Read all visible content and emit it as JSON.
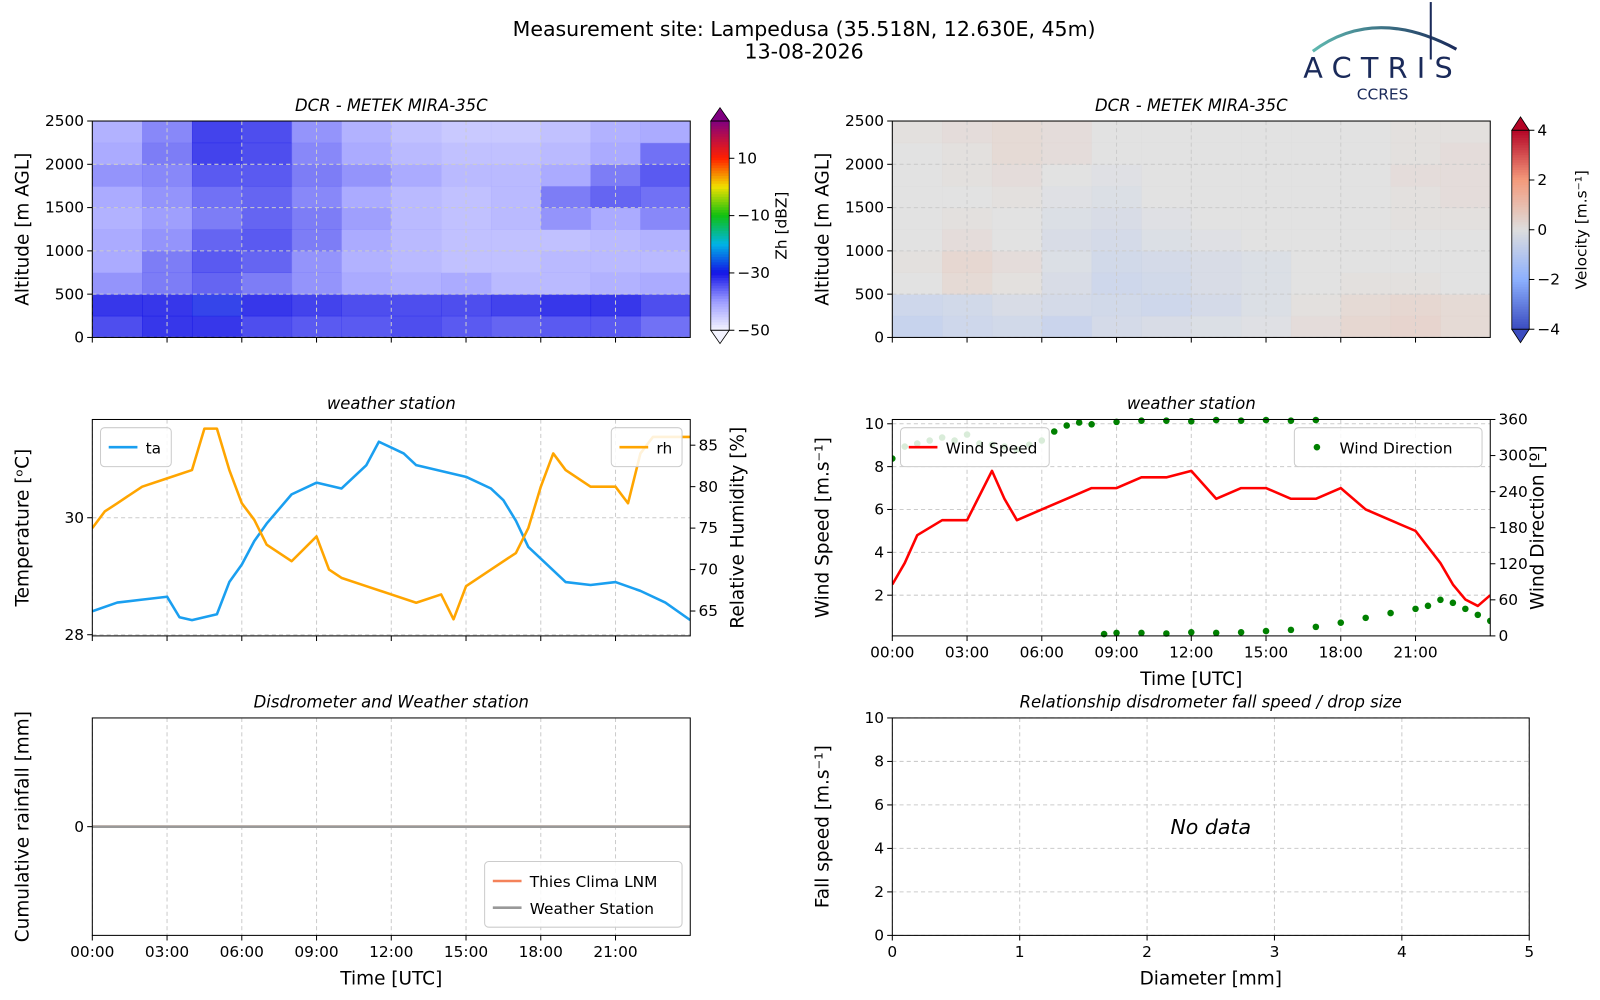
{
  "title": "Measurement site: Lampedusa (35.518N, 12.630E, 45m)",
  "subtitle": "13-08-2026",
  "logo": {
    "name": "ACTRIS",
    "sub": "CCRES"
  },
  "chart_data": [
    {
      "type": "heatmap",
      "title": "DCR - METEK MIRA-35C",
      "ylabel": "Altitude [m AGL]",
      "xlim": [
        0,
        24
      ],
      "xticks": [
        0,
        3,
        6,
        9,
        12,
        15,
        18,
        21
      ],
      "xtick_labels": false,
      "ylim": [
        0,
        2500
      ],
      "yticks": [
        0,
        500,
        1000,
        1500,
        2000,
        2500
      ],
      "grid": true,
      "x": [
        1,
        3,
        5,
        7,
        9,
        11,
        13,
        15,
        17,
        19,
        21,
        23
      ],
      "y": [
        125,
        375,
        625,
        875,
        1125,
        1375,
        1625,
        1875,
        2125,
        2375
      ],
      "z": [
        [
          -32,
          -30,
          -30,
          -32,
          -33,
          -33,
          -32,
          -33,
          -34,
          -33,
          -33,
          -35
        ],
        [
          -30,
          -30,
          -29,
          -30,
          -31,
          -32,
          -32,
          -32,
          -31,
          -30,
          -30,
          -32
        ],
        [
          -38,
          -36,
          -34,
          -36,
          -38,
          -40,
          -41,
          -40,
          -42,
          -42,
          -41,
          -40
        ],
        [
          -40,
          -36,
          -33,
          -34,
          -38,
          -41,
          -42,
          -43,
          -43,
          -42,
          -42,
          -42
        ],
        [
          -40,
          -38,
          -34,
          -33,
          -36,
          -40,
          -42,
          -43,
          -43,
          -43,
          -42,
          -41
        ],
        [
          -41,
          -39,
          -36,
          -34,
          -36,
          -39,
          -42,
          -43,
          -42,
          -38,
          -40,
          -37
        ],
        [
          -40,
          -38,
          -35,
          -34,
          -37,
          -40,
          -42,
          -43,
          -42,
          -36,
          -34,
          -35
        ],
        [
          -38,
          -37,
          -33,
          -33,
          -36,
          -38,
          -40,
          -42,
          -42,
          -40,
          -36,
          -33
        ],
        [
          -40,
          -36,
          -31,
          -32,
          -37,
          -40,
          -42,
          -43,
          -43,
          -42,
          -40,
          -35
        ],
        [
          -41,
          -37,
          -31,
          -32,
          -38,
          -41,
          -43,
          -44,
          -44,
          -43,
          -41,
          -40
        ]
      ],
      "colorbar": {
        "label": "Zh [dBZ]",
        "lim": [
          -50,
          23
        ],
        "ticks": [
          {
            "value": -50,
            "label": "−50"
          },
          {
            "value": -30,
            "label": "−30"
          },
          {
            "value": -10,
            "label": "−10"
          },
          10
        ],
        "colormap": [
          {
            "value": -50,
            "color": "#f4f4ff"
          },
          {
            "value": -40,
            "color": "#9c9cff"
          },
          {
            "value": -30,
            "color": "#1414e6"
          },
          {
            "value": -20,
            "color": "#00b4e6"
          },
          {
            "value": -10,
            "color": "#10c010"
          },
          {
            "value": 0,
            "color": "#f0e000"
          },
          {
            "value": 10,
            "color": "#ff2000"
          },
          {
            "value": 23,
            "color": "#800080"
          }
        ]
      }
    },
    {
      "type": "heatmap",
      "title": "DCR - METEK MIRA-35C",
      "ylabel": "Altitude [m AGL]",
      "xlim": [
        0,
        24
      ],
      "xticks": [
        0,
        3,
        6,
        9,
        12,
        15,
        18,
        21
      ],
      "xtick_labels": false,
      "ylim": [
        0,
        2500
      ],
      "yticks": [
        0,
        500,
        1000,
        1500,
        2000,
        2500
      ],
      "grid": true,
      "x": [
        1,
        3,
        5,
        7,
        9,
        11,
        13,
        15,
        17,
        19,
        21,
        23
      ],
      "y": [
        125,
        375,
        625,
        875,
        1125,
        1375,
        1625,
        1875,
        2125,
        2375
      ],
      "z": [
        [
          -0.8,
          -0.6,
          -0.5,
          -0.7,
          -0.4,
          -0.3,
          -0.2,
          -0.1,
          0.2,
          0.4,
          0.5,
          0.3
        ],
        [
          -0.6,
          -0.5,
          -0.3,
          -0.4,
          -0.5,
          -0.6,
          -0.4,
          -0.2,
          0.1,
          0.3,
          0.4,
          0.3
        ],
        [
          0,
          0.3,
          0.1,
          -0.3,
          -0.6,
          -0.5,
          -0.3,
          -0.2,
          0,
          0.1,
          0.1,
          0
        ],
        [
          0.1,
          0.4,
          0.2,
          -0.2,
          -0.5,
          -0.4,
          -0.3,
          -0.2,
          0,
          0,
          0,
          0
        ],
        [
          0,
          0.2,
          0,
          -0.3,
          -0.4,
          -0.2,
          -0.1,
          0,
          0,
          0,
          0,
          0
        ],
        [
          0,
          0.1,
          0,
          -0.2,
          -0.3,
          -0.1,
          0,
          0,
          0,
          0,
          0.1,
          0.1
        ],
        [
          0,
          0,
          0.1,
          -0.1,
          -0.2,
          0,
          0,
          0,
          0,
          0,
          0.1,
          0.2
        ],
        [
          0,
          0.1,
          0.2,
          0,
          -0.1,
          0,
          0,
          0,
          0,
          0,
          0.2,
          0.2
        ],
        [
          0,
          0.1,
          0.3,
          0.2,
          0,
          0,
          0,
          0,
          0,
          0,
          0.1,
          0.2
        ],
        [
          0.1,
          0.2,
          0.3,
          0.2,
          0,
          0,
          0,
          0,
          0,
          0,
          0.1,
          0.1
        ]
      ],
      "colorbar": {
        "label": "Velocity [m.s⁻¹]",
        "lim": [
          -4,
          4
        ],
        "ticks": [
          {
            "value": -4,
            "label": "−4"
          },
          {
            "value": -2,
            "label": "−2"
          },
          0,
          2,
          4
        ],
        "colormap": [
          {
            "value": -4,
            "color": "#3b4cc0"
          },
          {
            "value": -2,
            "color": "#8db0fe"
          },
          {
            "value": 0,
            "color": "#dddddd"
          },
          {
            "value": 2,
            "color": "#f49a7b"
          },
          {
            "value": 4,
            "color": "#b40426"
          }
        ]
      }
    },
    {
      "type": "line",
      "title": "weather station",
      "ylabel": "Temperature [ᵒC]",
      "y2label": "Relative Humidity [%]",
      "xlim": [
        0,
        24
      ],
      "xticks": [
        0,
        3,
        6,
        9,
        12,
        15,
        18,
        21
      ],
      "xtick_labels": false,
      "ylim": [
        27.98,
        31.68
      ],
      "yticks": [
        28,
        30
      ],
      "y2lim": [
        62,
        88.1
      ],
      "y2ticks": [
        65,
        70,
        75,
        80,
        85
      ],
      "grid": true,
      "series": [
        {
          "name": "ta",
          "color": "#1a9ff0",
          "legend": "upper left",
          "x": [
            0,
            1,
            2,
            3,
            3.5,
            4,
            5,
            5.5,
            6,
            6.5,
            7,
            8,
            9,
            10,
            11,
            11.5,
            12,
            12.5,
            13,
            14,
            15,
            16,
            16.5,
            17,
            17.5,
            18,
            19,
            20,
            21,
            22,
            23,
            24
          ],
          "values": [
            28.4,
            28.55,
            28.6,
            28.65,
            28.3,
            28.25,
            28.35,
            28.9,
            29.2,
            29.6,
            29.9,
            30.4,
            30.6,
            30.5,
            30.9,
            31.3,
            31.2,
            31.1,
            30.9,
            30.8,
            30.7,
            30.5,
            30.3,
            29.95,
            29.5,
            29.3,
            28.9,
            28.85,
            28.9,
            28.75,
            28.55,
            28.25
          ]
        },
        {
          "name": "rh",
          "color": "#ffa500",
          "axis": "y2",
          "legend": "upper right",
          "x": [
            0,
            0.5,
            1,
            2,
            3,
            4,
            4.5,
            5,
            5.5,
            6,
            6.5,
            7,
            8,
            9,
            9.5,
            10,
            11,
            12,
            13,
            14,
            14.5,
            15,
            16,
            17,
            17.5,
            18,
            18.5,
            19,
            20,
            21,
            21.5,
            22,
            22.5,
            23,
            24
          ],
          "values": [
            75,
            77,
            78,
            80,
            81,
            82,
            87,
            87,
            82,
            78,
            76,
            73,
            71,
            74,
            70,
            69,
            68,
            67,
            66,
            67,
            64,
            68,
            70,
            72,
            75,
            80,
            84,
            82,
            80,
            80,
            78,
            84,
            86,
            86,
            86
          ]
        }
      ]
    },
    {
      "type": "line",
      "title": "weather station",
      "ylabel": "Wind Speed [m.s⁻¹]",
      "y2label": "Wind Direction [º]",
      "xlabel": "Time [UTC]",
      "xlim": [
        0,
        24
      ],
      "xticks": [
        {
          "value": 0,
          "label": "00:00"
        },
        {
          "value": 3,
          "label": "03:00"
        },
        {
          "value": 6,
          "label": "06:00"
        },
        {
          "value": 9,
          "label": "09:00"
        },
        {
          "value": 12,
          "label": "12:00"
        },
        {
          "value": 15,
          "label": "15:00"
        },
        {
          "value": 18,
          "label": "18:00"
        },
        {
          "value": 21,
          "label": "21:00"
        }
      ],
      "ylim": [
        0.1,
        10.2
      ],
      "yticks": [
        2,
        4,
        6,
        8,
        10
      ],
      "y2lim": [
        0,
        360
      ],
      "y2ticks": [
        0,
        60,
        120,
        180,
        240,
        300,
        360
      ],
      "grid": true,
      "series": [
        {
          "name": "Wind Speed",
          "color": "#ff0000",
          "legend": "upper left",
          "x": [
            0,
            0.5,
            1,
            2,
            3,
            4,
            4.5,
            5,
            6,
            7,
            8,
            9,
            10,
            11,
            12,
            13,
            14,
            15,
            16,
            17,
            18,
            19,
            20,
            21,
            22,
            22.5,
            23,
            23.5,
            24
          ],
          "values": [
            2.5,
            3.5,
            4.8,
            5.5,
            5.5,
            7.8,
            6.5,
            5.5,
            6,
            6.5,
            7,
            7,
            7.5,
            7.5,
            7.8,
            6.5,
            7,
            7,
            6.5,
            6.5,
            7,
            6,
            5.5,
            5,
            3.5,
            2.5,
            1.8,
            1.5,
            2
          ]
        },
        {
          "name": "Wind Direction",
          "color": "#008000",
          "type": "scatter",
          "axis": "y2",
          "legend": "upper right",
          "x": [
            0,
            0.5,
            1,
            1.5,
            2,
            2.5,
            3,
            3.5,
            4,
            4.5,
            5,
            5.5,
            6,
            6.5,
            7,
            7.5,
            8,
            9,
            10,
            11,
            12,
            13,
            14,
            15,
            16,
            17,
            8.5,
            9,
            10,
            11,
            12,
            13,
            14,
            15,
            16,
            17,
            18,
            19,
            20,
            21,
            21.5,
            22,
            22.5,
            23,
            23.5,
            24
          ],
          "values": [
            295,
            315,
            320,
            325,
            330,
            325,
            335,
            320,
            318,
            315,
            310,
            318,
            325,
            340,
            350,
            355,
            352,
            356,
            358,
            358,
            357,
            359,
            358,
            359,
            358,
            359,
            3,
            5,
            5,
            4,
            6,
            5,
            6,
            8,
            10,
            15,
            22,
            30,
            38,
            45,
            50,
            60,
            55,
            45,
            35,
            25
          ]
        }
      ]
    },
    {
      "type": "line",
      "title": "Disdrometer and Weather station",
      "ylabel": "Cumulative rainfall [mm]",
      "xlabel": "Time [UTC]",
      "xlim": [
        0,
        24
      ],
      "xticks": [
        {
          "value": 0,
          "label": "00:00"
        },
        {
          "value": 3,
          "label": "03:00"
        },
        {
          "value": 6,
          "label": "06:00"
        },
        {
          "value": 9,
          "label": "09:00"
        },
        {
          "value": 12,
          "label": "12:00"
        },
        {
          "value": 15,
          "label": "15:00"
        },
        {
          "value": 18,
          "label": "18:00"
        },
        {
          "value": 21,
          "label": "21:00"
        }
      ],
      "ylim": [
        -1,
        1
      ],
      "yticks": [
        0
      ],
      "grid": true,
      "legend": "lower right",
      "series": [
        {
          "name": "Thies Clima LNM",
          "color": "#f4825a",
          "x": [
            0,
            24
          ],
          "values": [
            0,
            0
          ]
        },
        {
          "name": "Weather Station",
          "color": "#999999",
          "x": [
            0,
            24
          ],
          "values": [
            0,
            0
          ]
        }
      ]
    },
    {
      "type": "scatter",
      "title": "Relationship disdrometer fall speed / drop size",
      "ylabel": "Fall speed [m.s⁻¹]",
      "xlabel": "Diameter [mm]",
      "xlim": [
        0,
        5
      ],
      "xticks": [
        0,
        1,
        2,
        3,
        4,
        5
      ],
      "ylim": [
        0,
        10
      ],
      "yticks": [
        0,
        2,
        4,
        6,
        8,
        10
      ],
      "grid": true,
      "annotation": "No data",
      "series": []
    }
  ]
}
